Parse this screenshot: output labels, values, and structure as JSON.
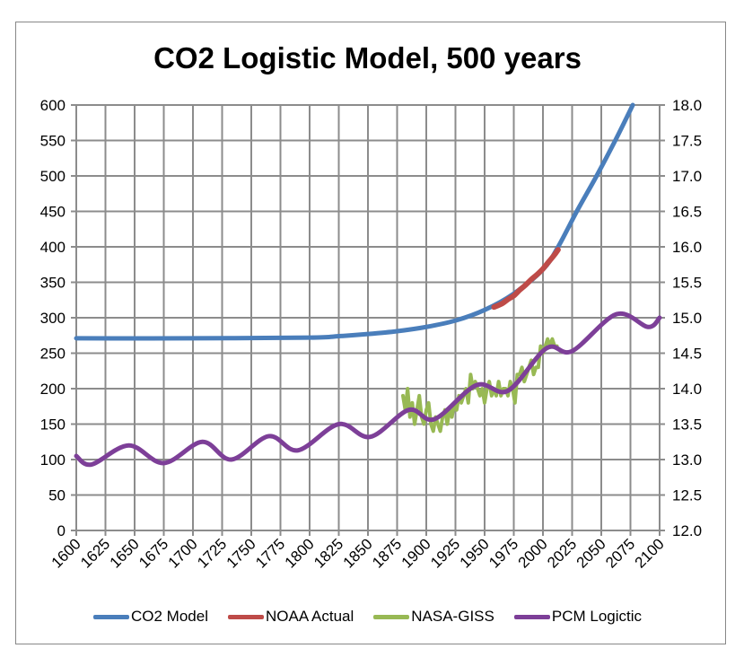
{
  "chart_data": {
    "type": "line",
    "title": "CO2 Logistic Model, 500 years",
    "xlim": [
      1600,
      2100
    ],
    "ylim": [
      0,
      600
    ],
    "y2lim": [
      12.0,
      18.0
    ],
    "grid": true,
    "legend_position": "bottom",
    "x_ticks": [
      "1600",
      "1625",
      "1650",
      "1675",
      "1700",
      "1725",
      "1750",
      "1775",
      "1800",
      "1825",
      "1850",
      "1875",
      "1900",
      "1925",
      "1950",
      "1975",
      "2000",
      "2025",
      "2050",
      "2075",
      "2100"
    ],
    "y_ticks": [
      "0",
      "50",
      "100",
      "150",
      "200",
      "250",
      "300",
      "350",
      "400",
      "450",
      "500",
      "550",
      "600"
    ],
    "y2_ticks": [
      "12.0",
      "12.5",
      "13.0",
      "13.5",
      "14.0",
      "14.5",
      "15.0",
      "15.5",
      "16.0",
      "16.5",
      "17.0",
      "17.5",
      "18.0"
    ],
    "series": [
      {
        "name": "CO2 Model",
        "axis": "left",
        "color": "#4a7ebb",
        "x": [
          1600,
          1700,
          1800,
          1825,
          1850,
          1875,
          1900,
          1925,
          1950,
          1975,
          2000,
          2013,
          2029,
          2046,
          2062,
          2077
        ],
        "y": [
          271,
          271,
          272,
          274,
          277,
          281,
          287,
          296,
          311,
          334,
          368,
          400,
          450,
          500,
          550,
          600
        ]
      },
      {
        "name": "NOAA Actual",
        "axis": "left",
        "color": "#be4b48",
        "x": [
          1958,
          1965,
          1970,
          1975,
          1980,
          1985,
          1990,
          1995,
          2000,
          2005,
          2010,
          2013
        ],
        "y": [
          315,
          320,
          326,
          331,
          339,
          346,
          354,
          361,
          369,
          379,
          389,
          396
        ]
      },
      {
        "name": "NASA-GISS",
        "axis": "right",
        "color": "#98b954",
        "x": [
          1880,
          1882,
          1884,
          1886,
          1888,
          1890,
          1892,
          1894,
          1896,
          1898,
          1900,
          1902,
          1904,
          1906,
          1908,
          1910,
          1912,
          1914,
          1916,
          1918,
          1920,
          1922,
          1924,
          1926,
          1928,
          1930,
          1932,
          1934,
          1936,
          1938,
          1940,
          1942,
          1944,
          1946,
          1948,
          1950,
          1952,
          1954,
          1956,
          1958,
          1960,
          1962,
          1964,
          1966,
          1968,
          1970,
          1972,
          1974,
          1976,
          1978,
          1980,
          1982,
          1984,
          1986,
          1988,
          1990,
          1992,
          1994,
          1996,
          1998,
          2000,
          2002,
          2004,
          2006,
          2008,
          2010,
          2012
        ],
        "y": [
          13.9,
          13.7,
          14.0,
          13.6,
          13.8,
          13.5,
          13.7,
          13.9,
          13.6,
          13.5,
          13.7,
          13.8,
          13.5,
          13.4,
          13.6,
          13.5,
          13.4,
          13.6,
          13.7,
          13.5,
          13.7,
          13.6,
          13.8,
          13.7,
          13.9,
          13.8,
          13.9,
          14.0,
          13.8,
          14.2,
          14.0,
          14.1,
          14.0,
          13.9,
          14.0,
          13.8,
          14.0,
          14.1,
          13.9,
          14.0,
          13.9,
          14.1,
          13.9,
          14.0,
          14.0,
          13.9,
          14.1,
          14.0,
          13.8,
          14.2,
          14.2,
          14.3,
          14.1,
          14.2,
          14.3,
          14.4,
          14.2,
          14.3,
          14.3,
          14.6,
          14.5,
          14.6,
          14.7,
          14.6,
          14.7,
          14.6,
          14.6
        ]
      },
      {
        "name": "PCM Logictic",
        "axis": "right",
        "color": "#7d3f98",
        "x": [
          1600,
          1613,
          1645,
          1675,
          1708,
          1733,
          1765,
          1790,
          1825,
          1852,
          1885,
          1907,
          1943,
          1970,
          2003,
          2025,
          2063,
          2090,
          2100
        ],
        "y": [
          13.05,
          12.93,
          13.2,
          12.95,
          13.25,
          13.0,
          13.33,
          13.13,
          13.5,
          13.32,
          13.7,
          13.57,
          14.05,
          13.97,
          14.57,
          14.53,
          15.05,
          14.87,
          15.0
        ]
      }
    ]
  }
}
